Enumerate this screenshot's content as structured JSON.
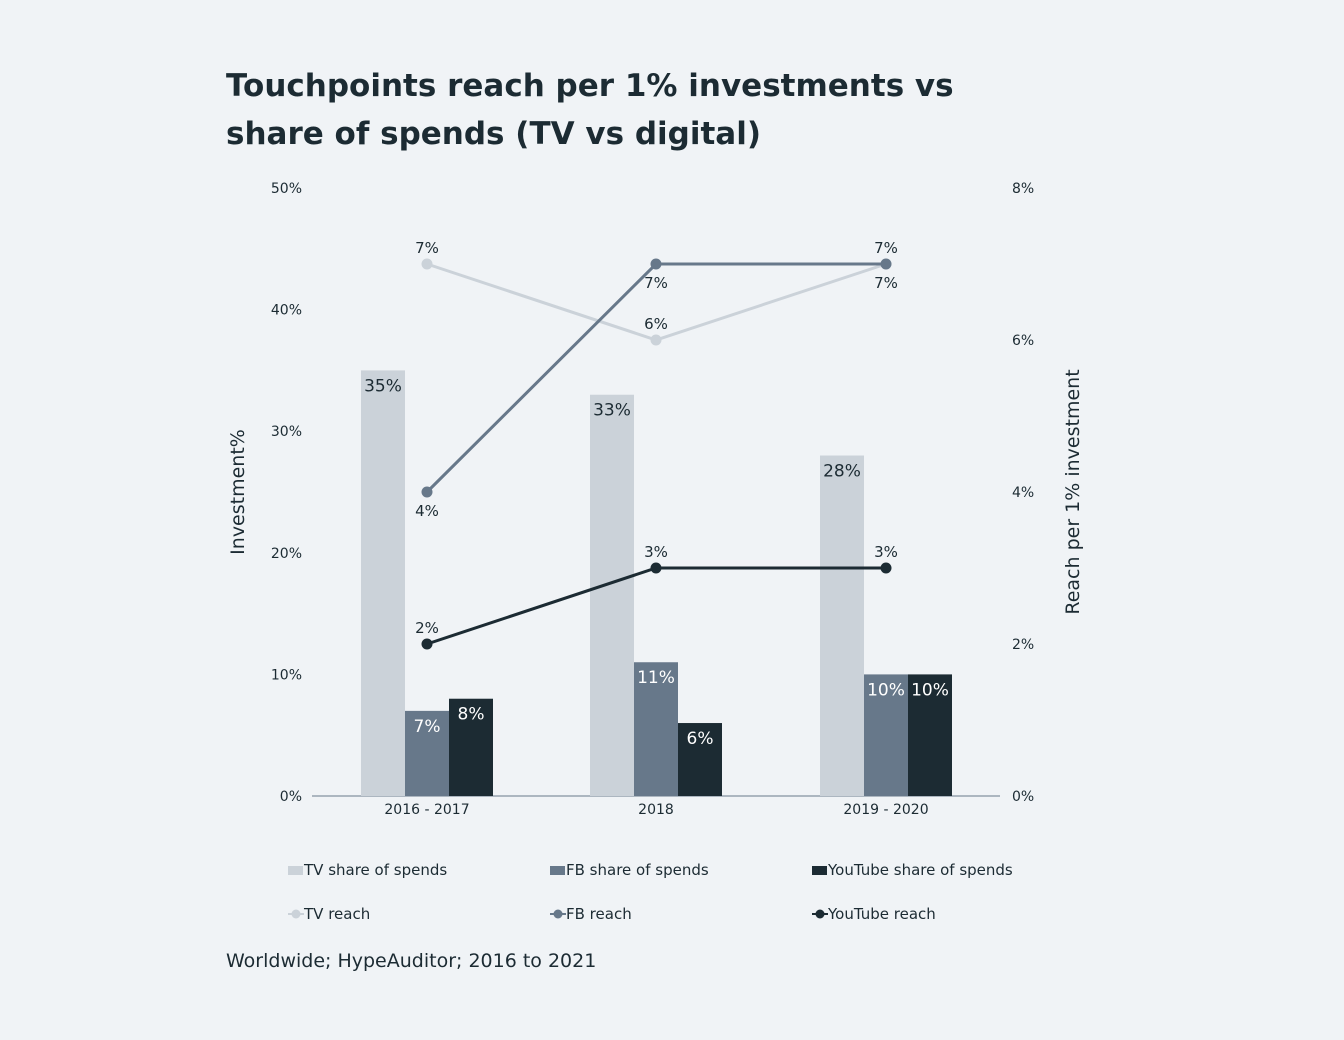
{
  "title": "Touchpoints reach per 1% investments vs share of spends (TV vs digital)",
  "source": "Worldwide; HypeAuditor; 2016 to 2021",
  "chart_data": {
    "type": "bar",
    "title": "Touchpoints reach per 1% investments vs share of spends (TV vs digital)",
    "categories": [
      "2016 - 2017",
      "2018",
      "2019 - 2020"
    ],
    "y_left": {
      "label": "Investment%",
      "ylim": [
        0,
        50
      ],
      "ticks": [
        0,
        10,
        20,
        30,
        40,
        50
      ],
      "tick_labels": [
        "0%",
        "10%",
        "20%",
        "30%",
        "40%",
        "50%"
      ]
    },
    "y_right": {
      "label": "Reach per 1% investment",
      "ylim": [
        0,
        8
      ],
      "ticks": [
        0,
        2,
        4,
        6,
        8
      ],
      "tick_labels": [
        "0%",
        "2%",
        "4%",
        "6%",
        "8%"
      ]
    },
    "bar_series": [
      {
        "name": "TV share of spends",
        "values": [
          35,
          33,
          28
        ],
        "labels": [
          "35%",
          "33%",
          "28%"
        ],
        "color": "#cbd2d9",
        "label_color": "#1c2b33"
      },
      {
        "name": "FB share of spends",
        "values": [
          7,
          11,
          10
        ],
        "labels": [
          "7%",
          "11%",
          "10%"
        ],
        "color": "#67788a",
        "label_color": "#ffffff"
      },
      {
        "name": "YouTube share of spends",
        "values": [
          8,
          6,
          10
        ],
        "labels": [
          "8%",
          "6%",
          "10%"
        ],
        "color": "#1c2b33",
        "label_color": "#ffffff"
      }
    ],
    "line_series": [
      {
        "name": "TV reach",
        "values": [
          7,
          6,
          7
        ],
        "labels": [
          "7%",
          "6%",
          "7%"
        ],
        "label_pos": [
          "above",
          "above",
          "below"
        ],
        "color": "#cbd2d9"
      },
      {
        "name": "FB reach",
        "values": [
          4,
          7,
          7
        ],
        "labels": [
          "4%",
          "7%",
          "7%"
        ],
        "label_pos": [
          "below",
          "below",
          "above"
        ],
        "color": "#67788a"
      },
      {
        "name": "YouTube reach",
        "values": [
          2,
          3,
          3
        ],
        "labels": [
          "2%",
          "3%",
          "3%"
        ],
        "label_pos": [
          "above",
          "above",
          "above"
        ],
        "color": "#1c2b33"
      }
    ],
    "grid": false,
    "legend": "bottom"
  }
}
